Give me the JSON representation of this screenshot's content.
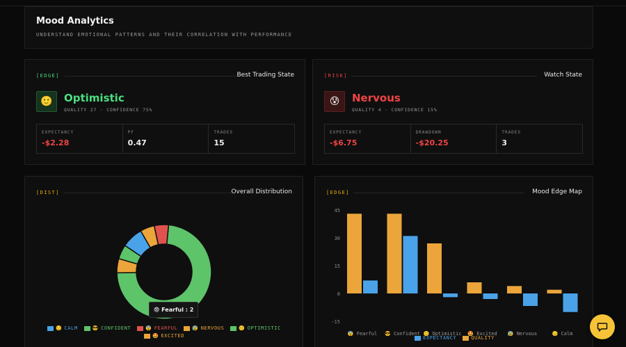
{
  "header": {
    "title": "Mood Analytics",
    "subtitle": "UNDERSTAND EMOTIONAL PATTERNS AND THEIR CORRELATION WITH PERFORMANCE"
  },
  "best_state": {
    "tag": "[EDGE]",
    "title": "Best Trading State",
    "emoji": "🙂",
    "mood": "Optimistic",
    "meta": "QUALITY 27 · CONFIDENCE 75%",
    "stats": [
      {
        "label": "EXPECTANCY",
        "value": "-$2.28"
      },
      {
        "label": "PF",
        "value": "0.47"
      },
      {
        "label": "TRADES",
        "value": "15"
      }
    ],
    "accent": "#4ade80"
  },
  "watch_state": {
    "tag": "[RISK]",
    "title": "Watch State",
    "emoji": "😰",
    "mood": "Nervous",
    "meta": "QUALITY 4 · CONFIDENCE 15%",
    "stats": [
      {
        "label": "EXPECTANCY",
        "value": "-$6.75"
      },
      {
        "label": "DRAWDOWN",
        "value": "-$20.25"
      },
      {
        "label": "TRADES",
        "value": "3"
      }
    ],
    "accent": "#ef4444"
  },
  "distribution": {
    "tag": "[DIST]",
    "title": "Overall Distribution",
    "tooltip": {
      "emoji": "😨",
      "text": "Fearful : 2"
    },
    "legend": [
      {
        "emoji": "😌",
        "label": "CALM",
        "color": "#4aa3e8"
      },
      {
        "emoji": "😎",
        "label": "CONFIDENT",
        "color": "#5ec46a"
      },
      {
        "emoji": "😨",
        "label": "FEARFUL",
        "color": "#e0524e"
      },
      {
        "emoji": "😰",
        "label": "NERVOUS",
        "color": "#eba53b"
      },
      {
        "emoji": "🙂",
        "label": "OPTIMISTIC",
        "color": "#5ec46a"
      },
      {
        "emoji": "🤩",
        "label": "EXCITED",
        "color": "#eba53b"
      }
    ]
  },
  "edge_map": {
    "tag": "[EDGE]",
    "title": "Mood Edge Map",
    "legend": [
      {
        "label": "EXPECTANCY",
        "color": "#4aa3e8"
      },
      {
        "label": "QUALITY",
        "color": "#eba53b"
      }
    ]
  },
  "chart_data": [
    {
      "type": "pie",
      "title": "",
      "categories": [
        "Confident",
        "Nervous",
        "Optimistic",
        "Calm",
        "Excited",
        "Fearful"
      ],
      "values": [
        30,
        2,
        2,
        3,
        2,
        2
      ],
      "colors": [
        "#5ec46a",
        "#eba53b",
        "#5ec46a",
        "#4aa3e8",
        "#eba53b",
        "#e0524e"
      ],
      "legend_position": "bottom"
    },
    {
      "type": "bar",
      "title": "",
      "categories": [
        "Fearful",
        "Confident",
        "Optimistic",
        "Excited",
        "Nervous",
        "Calm"
      ],
      "category_emojis": [
        "😨",
        "😎",
        "🙂",
        "🤩",
        "😰",
        "😌"
      ],
      "series": [
        {
          "name": "EXPECTANCY",
          "values": [
            7,
            31,
            -2,
            -3,
            -6.75,
            -10
          ],
          "color": "#4aa3e8"
        },
        {
          "name": "QUALITY",
          "values": [
            43,
            43,
            27,
            6,
            4,
            2
          ],
          "color": "#eba53b"
        }
      ],
      "ylim": [
        -15,
        45
      ],
      "yticks": [
        45,
        30,
        15,
        0,
        -15
      ],
      "legend_position": "bottom",
      "grid": false
    }
  ]
}
